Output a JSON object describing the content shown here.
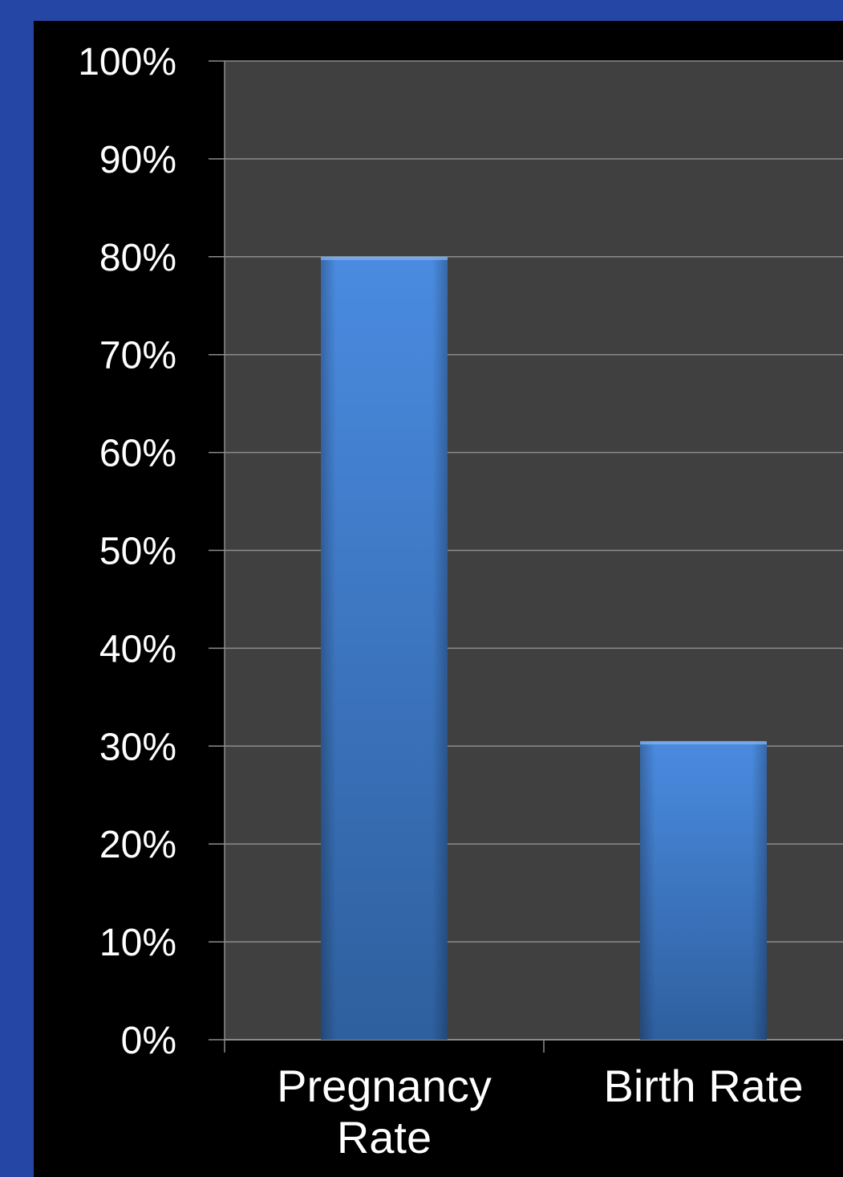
{
  "colors": {
    "slide_background": "#2646a6",
    "chart_background": "#000000",
    "plot_background": "#404040",
    "gridline": "#8c8c8c",
    "bar_top": "#4a8be0",
    "bar_bottom": "#2e5f9e",
    "text": "#ffffff"
  },
  "chart_data": {
    "type": "bar",
    "categories": [
      [
        "Pregnancy",
        "Rate"
      ],
      [
        "Birth Rate"
      ]
    ],
    "values": [
      0.8,
      0.305
    ],
    "ylim": [
      0,
      1
    ],
    "yticks": [
      0,
      0.1,
      0.2,
      0.3,
      0.4,
      0.5,
      0.6,
      0.7,
      0.8,
      0.9,
      1.0
    ],
    "ytick_labels": [
      "0%",
      "10%",
      "20%",
      "30%",
      "40%",
      "50%",
      "60%",
      "70%",
      "80%",
      "90%",
      "100%"
    ],
    "grid": true,
    "legend": "none"
  }
}
